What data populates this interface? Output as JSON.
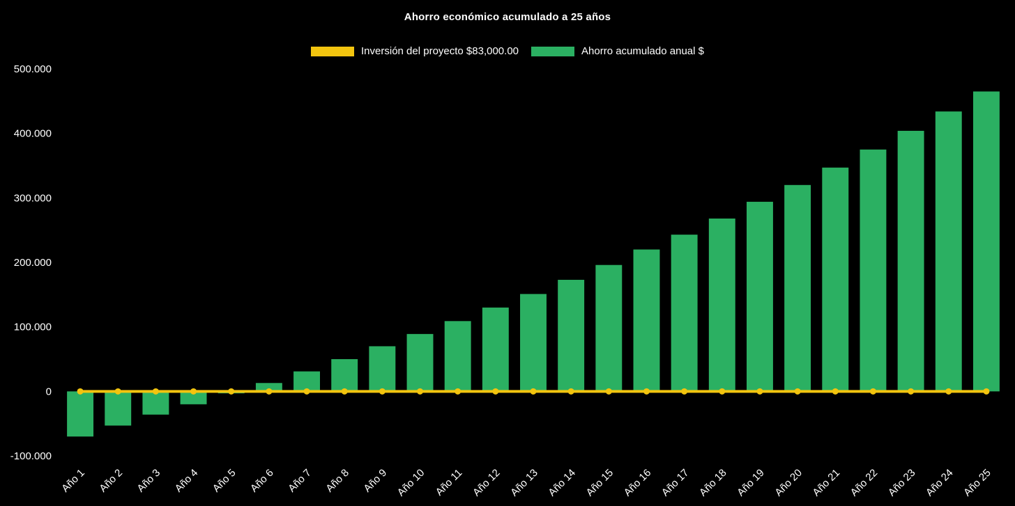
{
  "page": {
    "background_color": "#000000",
    "text_color": "#ffffff"
  },
  "chart_data": {
    "type": "bar",
    "title": "Ahorro económico acumulado a 25 años",
    "xlabel": "",
    "ylabel": "",
    "grid": false,
    "legend_position": "top",
    "ylim": [
      -100000,
      500000
    ],
    "ytick_values": [
      -100000,
      0,
      100000,
      200000,
      300000,
      400000,
      500000
    ],
    "ytick_labels": [
      "-100.000",
      "0",
      "100.000",
      "200.000",
      "300.000",
      "400.000",
      "500.000"
    ],
    "categories": [
      "Año 1",
      "Año 2",
      "Año 3",
      "Año 4",
      "Año 5",
      "Año 6",
      "Año 7",
      "Año 8",
      "Año 9",
      "Año 10",
      "Año 11",
      "Año 12",
      "Año 13",
      "Año 14",
      "Año 15",
      "Año 16",
      "Año 17",
      "Año 18",
      "Año 19",
      "Año 20",
      "Año 21",
      "Año 22",
      "Año 23",
      "Año 24",
      "Año 25"
    ],
    "series": [
      {
        "name": "Inversión del proyecto $83,000.00",
        "type": "line",
        "color": "#f2c40f",
        "values": [
          0,
          0,
          0,
          0,
          0,
          0,
          0,
          0,
          0,
          0,
          0,
          0,
          0,
          0,
          0,
          0,
          0,
          0,
          0,
          0,
          0,
          0,
          0,
          0,
          0
        ]
      },
      {
        "name": "Ahorro acumulado anual $",
        "type": "column",
        "color": "#2bb062",
        "values": [
          -70000,
          -53000,
          -36000,
          -20000,
          -3000,
          13000,
          31000,
          50000,
          70000,
          89000,
          109000,
          130000,
          151000,
          173000,
          196000,
          220000,
          243000,
          268000,
          294000,
          320000,
          347000,
          375000,
          404000,
          434000,
          465000
        ]
      }
    ]
  }
}
